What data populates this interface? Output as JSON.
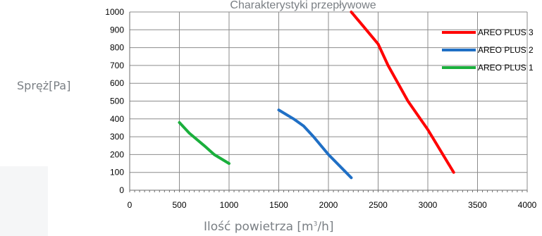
{
  "chart_data": {
    "type": "line",
    "title": "Charakterystyki przepływowe",
    "ylabel": "Spręż[Pa]",
    "xlabel_main": "Ilość powietrza [m",
    "xlabel_sup": "3",
    "xlabel_end": "/h]",
    "xlim": [
      0,
      4000
    ],
    "ylim": [
      0,
      1000
    ],
    "xticks": [
      0,
      500,
      1000,
      1500,
      2000,
      2500,
      3000,
      3500,
      4000
    ],
    "yticks": [
      0,
      100,
      200,
      300,
      400,
      500,
      600,
      700,
      800,
      900,
      1000
    ],
    "grid": true,
    "legend_position": "top-right",
    "series": [
      {
        "name": "AREO PLUS 3",
        "color": "#ff0000",
        "x": [
          2230,
          2350,
          2500,
          2600,
          2800,
          3000,
          3260
        ],
        "y": [
          1000,
          920,
          820,
          700,
          500,
          340,
          100
        ]
      },
      {
        "name": "AREO PLUS 2",
        "color": "#1f6fc5",
        "x": [
          1500,
          1650,
          1750,
          1850,
          2000,
          2230
        ],
        "y": [
          450,
          400,
          360,
          300,
          200,
          70
        ]
      },
      {
        "name": "AREO PLUS 1",
        "color": "#1aaf3c",
        "x": [
          500,
          600,
          750,
          850,
          1000
        ],
        "y": [
          380,
          320,
          250,
          200,
          150
        ]
      }
    ]
  }
}
